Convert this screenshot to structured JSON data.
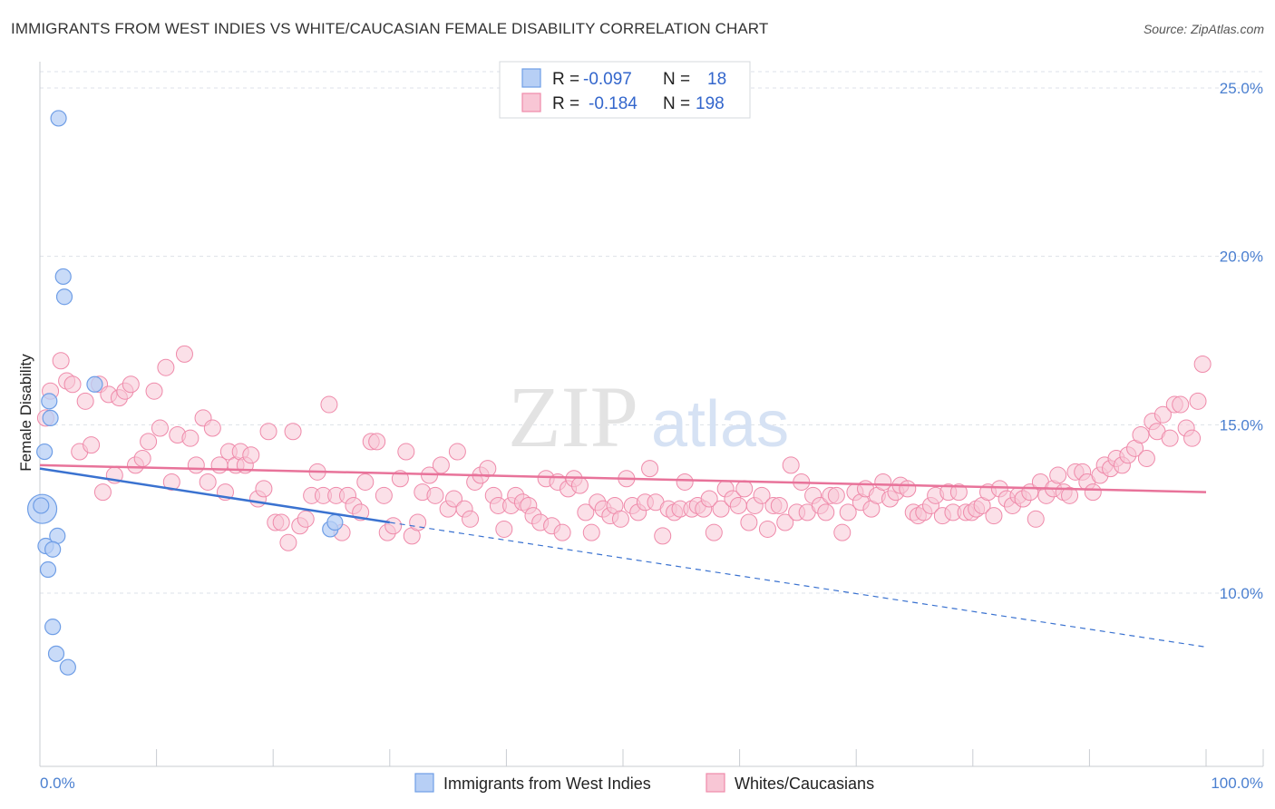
{
  "title": "IMMIGRANTS FROM WEST INDIES VS WHITE/CAUCASIAN FEMALE DISABILITY CORRELATION CHART",
  "source": "Source: ZipAtlas.com",
  "watermark": {
    "zip": "ZIP",
    "atlas": "atlas"
  },
  "colors": {
    "blue_fill": "#b7cff5",
    "blue_stroke": "#6f9ee6",
    "blue_line": "#3a72d0",
    "pink_fill": "#f8c6d5",
    "pink_stroke": "#ef8aaa",
    "pink_line": "#e8739a",
    "grid": "#dde1e8",
    "tick_text": "#4a7fd0"
  },
  "legend": {
    "rows": [
      {
        "r_label": "R =",
        "r_value": "-0.097",
        "n_label": "N =",
        "n_value": "18"
      },
      {
        "r_label": "R =",
        "r_value": "-0.184",
        "n_label": "N =",
        "n_value": "198"
      }
    ]
  },
  "chart_data": {
    "type": "scatter",
    "title": "IMMIGRANTS FROM WEST INDIES VS WHITE/CAUCASIAN FEMALE DISABILITY CORRELATION CHART",
    "xlabel": "",
    "ylabel": "Female Disability",
    "x_tick_labels": [
      "0.0%",
      "100.0%"
    ],
    "y_tick_labels": [
      "10.0%",
      "15.0%",
      "20.0%",
      "25.0%"
    ],
    "y_ticks": [
      10,
      15,
      20,
      25
    ],
    "xlim": [
      0,
      100
    ],
    "ylim": [
      5,
      26.5
    ],
    "grid": true,
    "legend_position": "top-center",
    "series": [
      {
        "name": "Immigrants from West Indies",
        "color": "blue",
        "r": -0.097,
        "n": 18,
        "trend": {
          "x": [
            0,
            30,
            100
          ],
          "y": [
            13.7,
            12.1,
            8.4
          ],
          "solid_until": 30
        },
        "points": [
          {
            "x": 1.6,
            "y": 24.1
          },
          {
            "x": 2.0,
            "y": 19.4
          },
          {
            "x": 2.1,
            "y": 18.8
          },
          {
            "x": 0.8,
            "y": 15.7
          },
          {
            "x": 0.9,
            "y": 15.2
          },
          {
            "x": 4.7,
            "y": 16.2
          },
          {
            "x": 0.4,
            "y": 14.2
          },
          {
            "x": 0.2,
            "y": 12.5,
            "large": true
          },
          {
            "x": 1.5,
            "y": 11.7
          },
          {
            "x": 0.5,
            "y": 11.4
          },
          {
            "x": 1.1,
            "y": 11.3
          },
          {
            "x": 0.7,
            "y": 10.7
          },
          {
            "x": 1.1,
            "y": 9.0
          },
          {
            "x": 1.4,
            "y": 8.2
          },
          {
            "x": 2.4,
            "y": 7.8
          },
          {
            "x": 24.9,
            "y": 11.9
          },
          {
            "x": 25.3,
            "y": 12.1
          },
          {
            "x": 0.1,
            "y": 12.6
          }
        ]
      },
      {
        "name": "Whites/Caucasians",
        "color": "pink",
        "r": -0.184,
        "n": 198,
        "trend": {
          "x": [
            0,
            100
          ],
          "y": [
            13.8,
            13.0
          ]
        },
        "points": [
          {
            "x": 0.5,
            "y": 15.2
          },
          {
            "x": 0.9,
            "y": 16.0
          },
          {
            "x": 1.8,
            "y": 16.9
          },
          {
            "x": 2.3,
            "y": 16.3
          },
          {
            "x": 2.8,
            "y": 16.2
          },
          {
            "x": 3.4,
            "y": 14.2
          },
          {
            "x": 3.9,
            "y": 15.7
          },
          {
            "x": 4.4,
            "y": 14.4
          },
          {
            "x": 5.1,
            "y": 16.2
          },
          {
            "x": 5.4,
            "y": 13.0
          },
          {
            "x": 5.9,
            "y": 15.9
          },
          {
            "x": 6.4,
            "y": 13.5
          },
          {
            "x": 6.8,
            "y": 15.8
          },
          {
            "x": 7.3,
            "y": 16.0
          },
          {
            "x": 7.8,
            "y": 16.2
          },
          {
            "x": 8.2,
            "y": 13.8
          },
          {
            "x": 8.8,
            "y": 14.0
          },
          {
            "x": 9.3,
            "y": 14.5
          },
          {
            "x": 9.8,
            "y": 16.0
          },
          {
            "x": 10.3,
            "y": 14.9
          },
          {
            "x": 10.8,
            "y": 16.7
          },
          {
            "x": 11.3,
            "y": 13.3
          },
          {
            "x": 11.8,
            "y": 14.7
          },
          {
            "x": 12.4,
            "y": 17.1
          },
          {
            "x": 12.9,
            "y": 14.6
          },
          {
            "x": 13.4,
            "y": 13.8
          },
          {
            "x": 14.0,
            "y": 15.2
          },
          {
            "x": 14.4,
            "y": 13.3
          },
          {
            "x": 14.8,
            "y": 14.9
          },
          {
            "x": 15.4,
            "y": 13.8
          },
          {
            "x": 15.9,
            "y": 13.0
          },
          {
            "x": 16.2,
            "y": 14.2
          },
          {
            "x": 16.8,
            "y": 13.8
          },
          {
            "x": 17.2,
            "y": 14.2
          },
          {
            "x": 17.6,
            "y": 13.8
          },
          {
            "x": 18.1,
            "y": 14.1
          },
          {
            "x": 18.7,
            "y": 12.8
          },
          {
            "x": 19.2,
            "y": 13.1
          },
          {
            "x": 19.6,
            "y": 14.8
          },
          {
            "x": 20.2,
            "y": 12.1
          },
          {
            "x": 20.7,
            "y": 12.1
          },
          {
            "x": 21.3,
            "y": 11.5
          },
          {
            "x": 21.7,
            "y": 14.8
          },
          {
            "x": 22.3,
            "y": 12.0
          },
          {
            "x": 22.8,
            "y": 12.2
          },
          {
            "x": 23.3,
            "y": 12.9
          },
          {
            "x": 23.8,
            "y": 13.6
          },
          {
            "x": 24.3,
            "y": 12.9
          },
          {
            "x": 24.8,
            "y": 15.6
          },
          {
            "x": 25.4,
            "y": 12.9
          },
          {
            "x": 25.9,
            "y": 11.8
          },
          {
            "x": 26.4,
            "y": 12.9
          },
          {
            "x": 26.9,
            "y": 12.6
          },
          {
            "x": 27.5,
            "y": 12.4
          },
          {
            "x": 27.9,
            "y": 13.3
          },
          {
            "x": 28.4,
            "y": 14.5
          },
          {
            "x": 28.9,
            "y": 14.5
          },
          {
            "x": 29.5,
            "y": 12.9
          },
          {
            "x": 29.8,
            "y": 11.8
          },
          {
            "x": 30.3,
            "y": 12.0
          },
          {
            "x": 30.9,
            "y": 13.4
          },
          {
            "x": 31.4,
            "y": 14.2
          },
          {
            "x": 31.9,
            "y": 11.7
          },
          {
            "x": 32.4,
            "y": 12.1
          },
          {
            "x": 32.8,
            "y": 13.0
          },
          {
            "x": 33.4,
            "y": 13.5
          },
          {
            "x": 33.9,
            "y": 12.9
          },
          {
            "x": 34.4,
            "y": 13.8
          },
          {
            "x": 35.0,
            "y": 12.5
          },
          {
            "x": 35.5,
            "y": 12.8
          },
          {
            "x": 35.8,
            "y": 14.2
          },
          {
            "x": 36.4,
            "y": 12.5
          },
          {
            "x": 36.9,
            "y": 12.2
          },
          {
            "x": 37.3,
            "y": 13.3
          },
          {
            "x": 37.8,
            "y": 13.5
          },
          {
            "x": 38.4,
            "y": 13.7
          },
          {
            "x": 38.9,
            "y": 12.9
          },
          {
            "x": 39.3,
            "y": 12.6
          },
          {
            "x": 39.8,
            "y": 11.9
          },
          {
            "x": 40.4,
            "y": 12.6
          },
          {
            "x": 40.8,
            "y": 12.9
          },
          {
            "x": 41.4,
            "y": 12.7
          },
          {
            "x": 41.9,
            "y": 12.6
          },
          {
            "x": 42.3,
            "y": 12.3
          },
          {
            "x": 42.9,
            "y": 12.1
          },
          {
            "x": 43.4,
            "y": 13.4
          },
          {
            "x": 43.9,
            "y": 12.0
          },
          {
            "x": 44.4,
            "y": 13.3
          },
          {
            "x": 44.8,
            "y": 11.8
          },
          {
            "x": 45.3,
            "y": 13.1
          },
          {
            "x": 45.8,
            "y": 13.4
          },
          {
            "x": 46.3,
            "y": 13.2
          },
          {
            "x": 46.8,
            "y": 12.4
          },
          {
            "x": 47.3,
            "y": 11.8
          },
          {
            "x": 47.8,
            "y": 12.7
          },
          {
            "x": 48.3,
            "y": 12.5
          },
          {
            "x": 48.9,
            "y": 12.3
          },
          {
            "x": 49.3,
            "y": 12.6
          },
          {
            "x": 49.8,
            "y": 12.2
          },
          {
            "x": 50.3,
            "y": 13.4
          },
          {
            "x": 50.8,
            "y": 12.6
          },
          {
            "x": 51.3,
            "y": 12.4
          },
          {
            "x": 51.9,
            "y": 12.7
          },
          {
            "x": 52.3,
            "y": 13.7
          },
          {
            "x": 52.8,
            "y": 12.7
          },
          {
            "x": 53.4,
            "y": 11.7
          },
          {
            "x": 53.9,
            "y": 12.5
          },
          {
            "x": 54.4,
            "y": 12.4
          },
          {
            "x": 54.9,
            "y": 12.5
          },
          {
            "x": 55.3,
            "y": 13.3
          },
          {
            "x": 55.9,
            "y": 12.5
          },
          {
            "x": 56.4,
            "y": 12.6
          },
          {
            "x": 56.9,
            "y": 12.5
          },
          {
            "x": 57.4,
            "y": 12.8
          },
          {
            "x": 57.8,
            "y": 11.8
          },
          {
            "x": 58.4,
            "y": 12.5
          },
          {
            "x": 58.8,
            "y": 13.1
          },
          {
            "x": 59.4,
            "y": 12.8
          },
          {
            "x": 59.9,
            "y": 12.6
          },
          {
            "x": 60.4,
            "y": 13.1
          },
          {
            "x": 60.8,
            "y": 12.1
          },
          {
            "x": 61.3,
            "y": 12.6
          },
          {
            "x": 61.9,
            "y": 12.9
          },
          {
            "x": 62.4,
            "y": 11.9
          },
          {
            "x": 62.9,
            "y": 12.6
          },
          {
            "x": 63.4,
            "y": 12.6
          },
          {
            "x": 63.9,
            "y": 12.1
          },
          {
            "x": 64.4,
            "y": 13.8
          },
          {
            "x": 64.9,
            "y": 12.4
          },
          {
            "x": 65.3,
            "y": 13.3
          },
          {
            "x": 65.8,
            "y": 12.4
          },
          {
            "x": 66.3,
            "y": 12.9
          },
          {
            "x": 66.9,
            "y": 12.6
          },
          {
            "x": 67.4,
            "y": 12.4
          },
          {
            "x": 67.8,
            "y": 12.9
          },
          {
            "x": 68.3,
            "y": 12.9
          },
          {
            "x": 68.8,
            "y": 11.8
          },
          {
            "x": 69.3,
            "y": 12.4
          },
          {
            "x": 69.9,
            "y": 13.0
          },
          {
            "x": 70.4,
            "y": 12.7
          },
          {
            "x": 70.8,
            "y": 13.1
          },
          {
            "x": 71.3,
            "y": 12.5
          },
          {
            "x": 71.8,
            "y": 12.9
          },
          {
            "x": 72.3,
            "y": 13.3
          },
          {
            "x": 72.9,
            "y": 12.8
          },
          {
            "x": 73.4,
            "y": 13.0
          },
          {
            "x": 73.8,
            "y": 13.2
          },
          {
            "x": 74.4,
            "y": 13.1
          },
          {
            "x": 74.9,
            "y": 12.4
          },
          {
            "x": 75.3,
            "y": 12.3
          },
          {
            "x": 75.8,
            "y": 12.4
          },
          {
            "x": 76.4,
            "y": 12.6
          },
          {
            "x": 76.8,
            "y": 12.9
          },
          {
            "x": 77.4,
            "y": 12.3
          },
          {
            "x": 77.9,
            "y": 13.0
          },
          {
            "x": 78.3,
            "y": 12.4
          },
          {
            "x": 78.8,
            "y": 13.0
          },
          {
            "x": 79.4,
            "y": 12.4
          },
          {
            "x": 79.9,
            "y": 12.4
          },
          {
            "x": 80.3,
            "y": 12.5
          },
          {
            "x": 80.8,
            "y": 12.6
          },
          {
            "x": 81.3,
            "y": 13.0
          },
          {
            "x": 81.8,
            "y": 12.3
          },
          {
            "x": 82.3,
            "y": 13.1
          },
          {
            "x": 82.9,
            "y": 12.8
          },
          {
            "x": 83.4,
            "y": 12.6
          },
          {
            "x": 83.9,
            "y": 12.9
          },
          {
            "x": 84.3,
            "y": 12.8
          },
          {
            "x": 84.9,
            "y": 13.0
          },
          {
            "x": 85.4,
            "y": 12.2
          },
          {
            "x": 85.8,
            "y": 13.3
          },
          {
            "x": 86.3,
            "y": 12.9
          },
          {
            "x": 86.9,
            "y": 13.1
          },
          {
            "x": 87.3,
            "y": 13.5
          },
          {
            "x": 87.8,
            "y": 13.0
          },
          {
            "x": 88.3,
            "y": 12.9
          },
          {
            "x": 88.8,
            "y": 13.6
          },
          {
            "x": 89.4,
            "y": 13.6
          },
          {
            "x": 89.8,
            "y": 13.3
          },
          {
            "x": 90.3,
            "y": 13.0
          },
          {
            "x": 90.9,
            "y": 13.5
          },
          {
            "x": 91.3,
            "y": 13.8
          },
          {
            "x": 91.8,
            "y": 13.7
          },
          {
            "x": 92.3,
            "y": 14.0
          },
          {
            "x": 92.8,
            "y": 13.8
          },
          {
            "x": 93.3,
            "y": 14.1
          },
          {
            "x": 93.9,
            "y": 14.3
          },
          {
            "x": 94.4,
            "y": 14.7
          },
          {
            "x": 94.9,
            "y": 14.0
          },
          {
            "x": 95.4,
            "y": 15.1
          },
          {
            "x": 95.8,
            "y": 14.8
          },
          {
            "x": 96.3,
            "y": 15.3
          },
          {
            "x": 96.9,
            "y": 14.6
          },
          {
            "x": 97.3,
            "y": 15.6
          },
          {
            "x": 97.8,
            "y": 15.6
          },
          {
            "x": 98.3,
            "y": 14.9
          },
          {
            "x": 98.8,
            "y": 14.6
          },
          {
            "x": 99.3,
            "y": 15.7
          },
          {
            "x": 99.7,
            "y": 16.8
          }
        ]
      }
    ]
  }
}
